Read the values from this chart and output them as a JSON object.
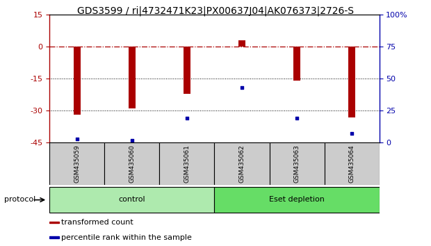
{
  "title": "GDS3599 / ri|4732471K23|PX00637J04|AK076373|2726-S",
  "samples": [
    "GSM435059",
    "GSM435060",
    "GSM435061",
    "GSM435062",
    "GSM435063",
    "GSM435064"
  ],
  "red_values": [
    -32,
    -29,
    -22,
    3,
    -16,
    -33
  ],
  "blue_values": [
    3,
    2,
    19,
    43,
    19,
    7
  ],
  "ylim_left": [
    -45,
    15
  ],
  "ylim_right": [
    0,
    100
  ],
  "yticks_left": [
    -45,
    -30,
    -15,
    0,
    15
  ],
  "ytick_labels_left": [
    "-45",
    "-30",
    "-15",
    "0",
    "15"
  ],
  "yticks_right": [
    0,
    25,
    50,
    75,
    100
  ],
  "ytick_labels_right": [
    "0",
    "25",
    "50",
    "75",
    "100%"
  ],
  "dotted_lines": [
    -15,
    -30
  ],
  "groups": [
    {
      "label": "control",
      "start": 0,
      "end": 2,
      "color": "#aeeaae"
    },
    {
      "label": "Eset depletion",
      "start": 3,
      "end": 5,
      "color": "#66dd66"
    }
  ],
  "bar_color": "#aa0000",
  "scatter_color": "#0000aa",
  "bar_width": 0.12,
  "sample_box_color": "#cccccc",
  "protocol_label": "protocol",
  "legend_items": [
    {
      "color": "#aa0000",
      "label": "transformed count"
    },
    {
      "color": "#0000aa",
      "label": "percentile rank within the sample"
    }
  ],
  "title_fontsize": 10,
  "tick_fontsize": 8,
  "sample_fontsize": 6.5,
  "group_fontsize": 8,
  "legend_fontsize": 8
}
